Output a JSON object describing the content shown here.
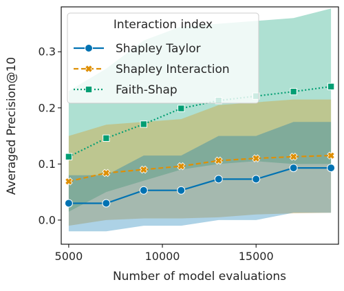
{
  "chart_data": {
    "type": "line",
    "title": "",
    "xlabel": "Number of model evaluations",
    "ylabel": "Averaged Precision@10",
    "xlim": [
      4600,
      19400
    ],
    "ylim": [
      -0.043,
      0.38
    ],
    "x": [
      5000,
      7000,
      9000,
      11000,
      13000,
      15000,
      17000,
      19000
    ],
    "x_ticks": [
      5000,
      10000,
      15000
    ],
    "x_tick_labels": [
      "5000",
      "10000",
      "15000"
    ],
    "y_ticks": [
      0.0,
      0.1,
      0.2,
      0.3
    ],
    "y_tick_labels": [
      "0.0",
      "0.1",
      "0.2",
      "0.3"
    ],
    "grid": false,
    "legend": {
      "title": "Interaction index",
      "placement": "top-left"
    },
    "series": [
      {
        "name": "Shapley Taylor",
        "color": "#0072b2",
        "marker": "circle",
        "line_style": "solid",
        "values": [
          0.03,
          0.03,
          0.053,
          0.053,
          0.073,
          0.073,
          0.093,
          0.093
        ],
        "band_lower": [
          -0.02,
          -0.02,
          -0.01,
          -0.01,
          0.0,
          0.0,
          0.013,
          0.013
        ],
        "band_upper": [
          0.08,
          0.08,
          0.115,
          0.115,
          0.15,
          0.15,
          0.175,
          0.175
        ]
      },
      {
        "name": "Shapley Interaction",
        "color": "#de8f05",
        "marker": "x",
        "line_style": "dashed",
        "values": [
          0.069,
          0.084,
          0.09,
          0.096,
          0.106,
          0.11,
          0.113,
          0.115
        ],
        "band_lower": [
          -0.01,
          0.0,
          0.003,
          0.003,
          0.005,
          0.01,
          0.012,
          0.013
        ],
        "band_upper": [
          0.15,
          0.17,
          0.175,
          0.18,
          0.205,
          0.21,
          0.215,
          0.215
        ]
      },
      {
        "name": "Faith-Shap",
        "color": "#029e73",
        "marker": "square",
        "line_style": "dotted",
        "values": [
          0.113,
          0.146,
          0.171,
          0.199,
          0.213,
          0.221,
          0.229,
          0.238
        ],
        "band_lower": [
          0.015,
          0.05,
          0.07,
          0.09,
          0.1,
          0.105,
          0.1,
          0.1
        ],
        "band_upper": [
          0.23,
          0.27,
          0.32,
          0.345,
          0.35,
          0.355,
          0.36,
          0.377
        ]
      }
    ]
  }
}
